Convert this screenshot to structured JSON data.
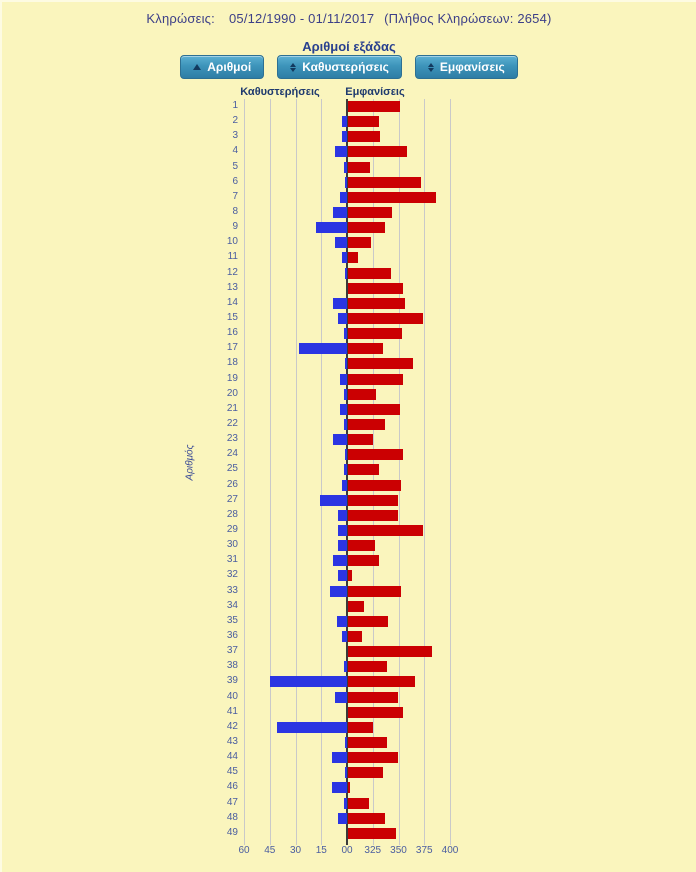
{
  "header": {
    "draws_label": "Κληρώσεις:",
    "date_range": "05/12/1990 - 01/11/2017",
    "count_note": "(Πλήθος Κληρώσεων: 2654)"
  },
  "title": "Αριθμοί εξάδας",
  "buttons": [
    {
      "label": "Αριθμοί",
      "icon": "sort-ascending-icon"
    },
    {
      "label": "Καθυστερήσεις",
      "icon": "sort-both-icon"
    },
    {
      "label": "Εμφανίσεις",
      "icon": "sort-both-icon"
    }
  ],
  "column_headers": {
    "left": "Καθυστερήσεις",
    "right": "Εμφανίσεις"
  },
  "colors": {
    "background": "#faf5bd",
    "delay_bar": "#2b35e2",
    "appearance_bar": "#cb0002",
    "button": "#3d94ba",
    "gridline": "#c9c9c9",
    "axis_text": "#4a5da0"
  },
  "chart_data": {
    "type": "bar",
    "orientation": "horizontal-diverging",
    "title": "Αριθμοί εξάδας",
    "ylabel": "Αριθμός",
    "categories": [
      1,
      2,
      3,
      4,
      5,
      6,
      7,
      8,
      9,
      10,
      11,
      12,
      13,
      14,
      15,
      16,
      17,
      18,
      19,
      20,
      21,
      22,
      23,
      24,
      25,
      26,
      27,
      28,
      29,
      30,
      31,
      32,
      33,
      34,
      35,
      36,
      37,
      38,
      39,
      40,
      41,
      42,
      43,
      44,
      45,
      46,
      47,
      48,
      49
    ],
    "series": [
      {
        "name": "Καθυστερήσεις",
        "direction": "left",
        "axis_range": [
          0,
          60
        ],
        "tick_values": [
          60,
          45,
          30,
          15,
          0
        ],
        "tick_labels": [
          "60",
          "45",
          "30",
          "15"
        ],
        "values": [
          0,
          3,
          3,
          7,
          2,
          1,
          4,
          8,
          18,
          7,
          3,
          1,
          0,
          8,
          5,
          2,
          28,
          1,
          4,
          2,
          4,
          2,
          8,
          1,
          2,
          3,
          16,
          5,
          5,
          5,
          8,
          5,
          10,
          0,
          6,
          3,
          0,
          2,
          45,
          7,
          0,
          41,
          1,
          9,
          1,
          9,
          2,
          5,
          0
        ]
      },
      {
        "name": "Εμφανίσεις",
        "direction": "right",
        "axis_range": [
          300,
          400
        ],
        "tick_values": [
          300,
          325,
          350,
          375,
          400
        ],
        "tick_labels": [
          "325",
          "350",
          "375",
          "400"
        ],
        "values": [
          350,
          330,
          331,
          357,
          321,
          371,
          385,
          343,
          336,
          322,
          310,
          342,
          353,
          355,
          373,
          352,
          334,
          363,
          353,
          327,
          350,
          336,
          324,
          353,
          330,
          351,
          349,
          349,
          373,
          326,
          330,
          304,
          351,
          316,
          339,
          314,
          382,
          338,
          365,
          349,
          353,
          324,
          338,
          349,
          334,
          302,
          320,
          336,
          347
        ]
      }
    ],
    "center_tick_label": "00",
    "grid": true,
    "legend_position": "top-column-headers"
  }
}
